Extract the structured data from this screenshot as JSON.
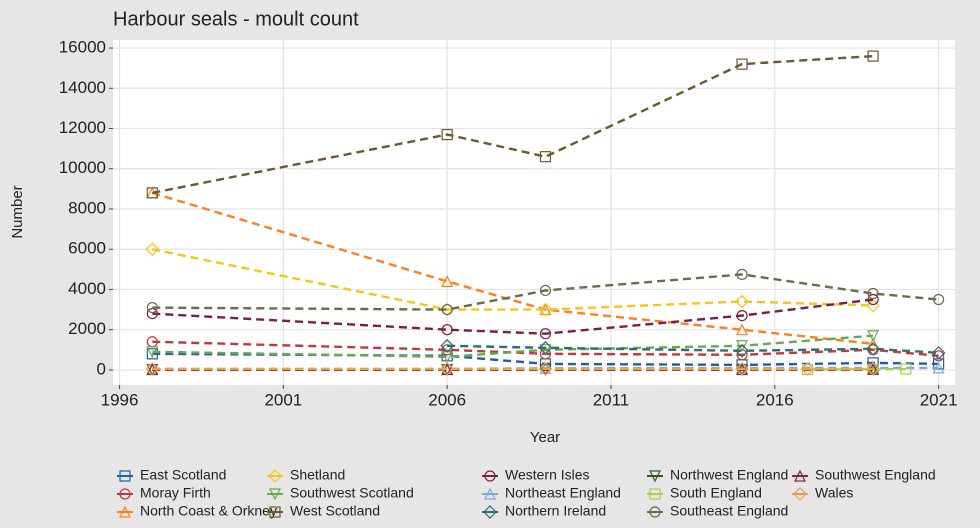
{
  "chart_data": {
    "type": "line",
    "title": "Harbour seals - moult count",
    "x_label": "Year",
    "y_label": "Number",
    "xlim": [
      1995.8,
      2021.5
    ],
    "xticks": [
      1996,
      2001,
      2006,
      2011,
      2016,
      2021
    ],
    "ylim": [
      -750,
      16400
    ],
    "yticks": [
      0,
      2000,
      4000,
      6000,
      8000,
      10000,
      12000,
      14000,
      16000
    ],
    "grid": true,
    "legend": "bottom",
    "series": [
      {
        "name": "East Scotland",
        "color": "#1f5f9e",
        "x": [
          1997,
          2006,
          2009,
          2015,
          2019,
          2021
        ],
        "values": [
          800,
          700,
          300,
          250,
          350,
          300
        ]
      },
      {
        "name": "Moray Firth",
        "color": "#c0393b",
        "x": [
          1997,
          2006,
          2009,
          2015,
          2019,
          2021
        ],
        "values": [
          1400,
          1000,
          800,
          750,
          1000,
          700
        ]
      },
      {
        "name": "North Coast & Orkney",
        "color": "#ff7f1e",
        "x": [
          1997,
          2006,
          2009,
          2015,
          2019
        ],
        "values": [
          8800,
          4400,
          3000,
          2000,
          1300
        ]
      },
      {
        "name": "Shetland",
        "color": "#f5c518",
        "x": [
          1997,
          2006,
          2009,
          2015,
          2019
        ],
        "values": [
          6000,
          3000,
          3000,
          3400,
          3200
        ]
      },
      {
        "name": "Southwest Scotland",
        "color": "#6aa84f",
        "x": [
          1997,
          2006,
          2009,
          2015,
          2019
        ],
        "values": [
          900,
          650,
          1000,
          1200,
          1700
        ]
      },
      {
        "name": "West Scotland",
        "color": "#6b5a2e",
        "x": [
          1997,
          2006,
          2009,
          2015,
          2019
        ],
        "values": [
          8800,
          11700,
          10600,
          15200,
          15600
        ]
      },
      {
        "name": "Western Isles",
        "color": "#7b1e45",
        "x": [
          1997,
          2006,
          2009,
          2015,
          2019
        ],
        "values": [
          2800,
          2000,
          1800,
          2700,
          3500
        ]
      },
      {
        "name": "Northeast England",
        "color": "#7fa7d8",
        "x": [
          1997,
          2006,
          2009,
          2015,
          2019,
          2021
        ],
        "values": [
          50,
          50,
          80,
          90,
          100,
          100
        ]
      },
      {
        "name": "Northern Ireland",
        "color": "#2e6e6e",
        "x": [
          2006,
          2009,
          2015,
          2019,
          2021
        ],
        "values": [
          1200,
          1100,
          950,
          1050,
          850
        ]
      },
      {
        "name": "Northwest England",
        "color": "#3c5a1e",
        "x": [
          1997,
          2006,
          2009,
          2015,
          2019
        ],
        "values": [
          10,
          10,
          10,
          10,
          10
        ]
      },
      {
        "name": "South England",
        "color": "#a8d04a",
        "x": [
          2017,
          2019,
          2020
        ],
        "values": [
          20,
          30,
          40
        ]
      },
      {
        "name": "Southeast England",
        "color": "#6b6b4a",
        "x": [
          1997,
          2006,
          2009,
          2015,
          2019,
          2021
        ],
        "values": [
          3100,
          3000,
          3950,
          4750,
          3800,
          3500
        ]
      },
      {
        "name": "Southwest England",
        "color": "#8a2040",
        "x": [
          1997,
          2006,
          2015,
          2019
        ],
        "values": [
          20,
          20,
          20,
          30
        ]
      },
      {
        "name": "Wales",
        "color": "#f0a040",
        "x": [
          1997,
          2006,
          2009,
          2015,
          2017,
          2019
        ],
        "values": [
          50,
          50,
          50,
          50,
          50,
          50
        ]
      }
    ]
  }
}
